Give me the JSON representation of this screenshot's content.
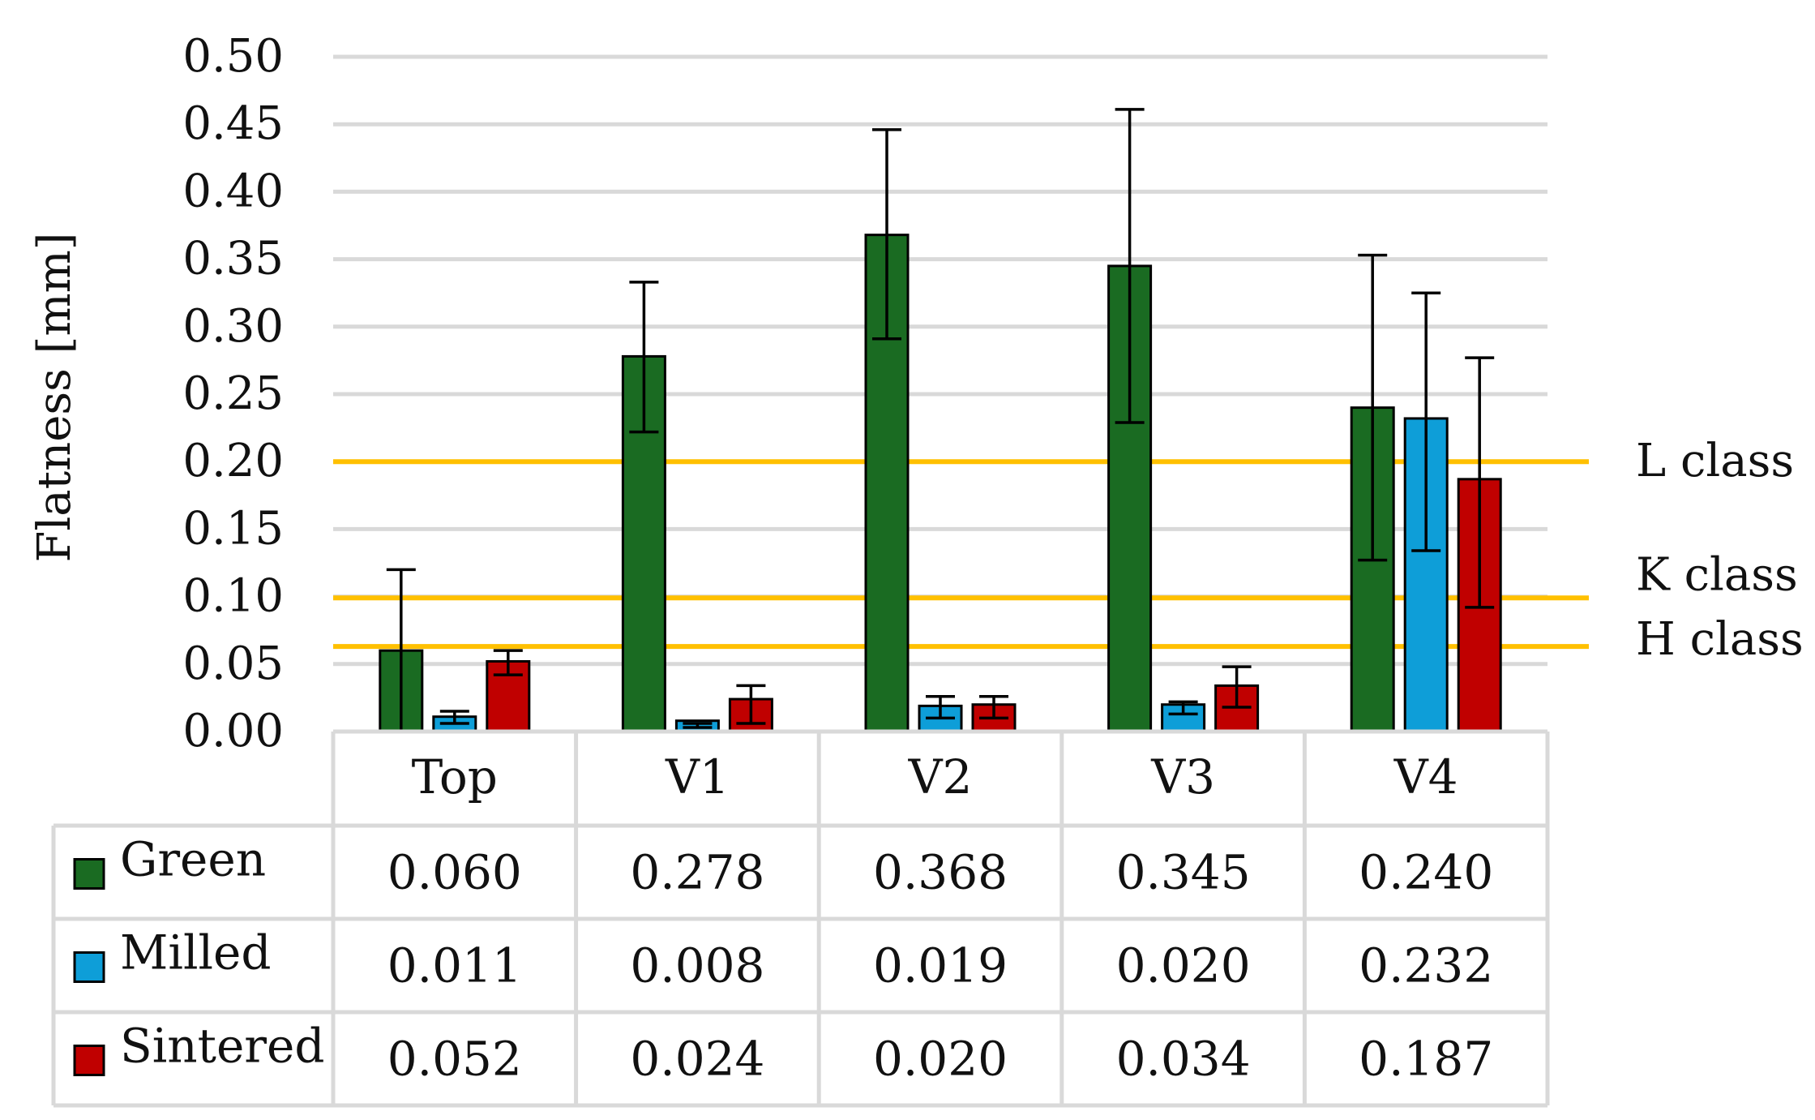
{
  "chart_data": {
    "type": "bar",
    "ylabel": "Flatness [mm]",
    "xlabel": "",
    "ylim": [
      0,
      0.5
    ],
    "yticks": [
      "0.00",
      "0.05",
      "0.10",
      "0.15",
      "0.20",
      "0.25",
      "0.30",
      "0.35",
      "0.40",
      "0.45",
      "0.50"
    ],
    "grid": true,
    "categories": [
      "Top",
      "V1",
      "V2",
      "V3",
      "V4"
    ],
    "series": [
      {
        "name": "Green",
        "color": "#1a6b22",
        "values": [
          0.06,
          0.278,
          0.368,
          0.345,
          0.24
        ],
        "labels": [
          "0.060",
          "0.278",
          "0.368",
          "0.345",
          "0.240"
        ],
        "error_low": [
          0.0,
          0.222,
          0.291,
          0.229,
          0.127
        ],
        "error_high": [
          0.12,
          0.333,
          0.446,
          0.461,
          0.353
        ]
      },
      {
        "name": "Milled",
        "color": "#0e9ed8",
        "values": [
          0.011,
          0.008,
          0.019,
          0.02,
          0.232
        ],
        "labels": [
          "0.011",
          "0.008",
          "0.019",
          "0.020",
          "0.232"
        ],
        "error_low": [
          0.006,
          0.003,
          0.01,
          0.013,
          0.134
        ],
        "error_high": [
          0.015,
          0.006,
          0.026,
          0.022,
          0.325
        ]
      },
      {
        "name": "Sintered",
        "color": "#c00000",
        "values": [
          0.052,
          0.024,
          0.02,
          0.034,
          0.187
        ],
        "labels": [
          "0.052",
          "0.024",
          "0.020",
          "0.034",
          "0.187"
        ],
        "error_low": [
          0.042,
          0.006,
          0.01,
          0.018,
          0.092
        ],
        "error_high": [
          0.06,
          0.034,
          0.026,
          0.048,
          0.277
        ]
      }
    ],
    "reference_lines": [
      {
        "label": "L class",
        "value": 0.2,
        "color": "#ffc000"
      },
      {
        "label": "K class",
        "value": 0.099,
        "color": "#ffc000"
      },
      {
        "label": "H class",
        "value": 0.063,
        "color": "#ffc000"
      }
    ]
  }
}
